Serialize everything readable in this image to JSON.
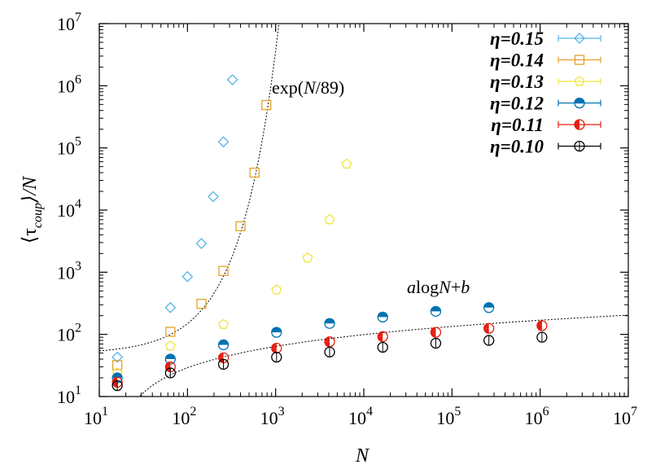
{
  "chart_data": {
    "type": "scatter",
    "xlabel": "N",
    "ylabel_main": "⟨τ",
    "ylabel_sub": "coup",
    "ylabel_tail": "⟩/N",
    "xscale": "log",
    "yscale": "log",
    "xlim": [
      10,
      10000000
    ],
    "ylim": [
      10,
      10000000
    ],
    "x_ticks": [
      {
        "value": 10,
        "base": "10",
        "exp": "1"
      },
      {
        "value": 100,
        "base": "10",
        "exp": "2"
      },
      {
        "value": 1000,
        "base": "10",
        "exp": "3"
      },
      {
        "value": 10000,
        "base": "10",
        "exp": "4"
      },
      {
        "value": 100000,
        "base": "10",
        "exp": "5"
      },
      {
        "value": 1000000,
        "base": "10",
        "exp": "6"
      },
      {
        "value": 10000000,
        "base": "10",
        "exp": "7"
      }
    ],
    "y_ticks": [
      {
        "value": 10,
        "base": "10",
        "exp": "1"
      },
      {
        "value": 100,
        "base": "10",
        "exp": "2"
      },
      {
        "value": 1000,
        "base": "10",
        "exp": "3"
      },
      {
        "value": 10000,
        "base": "10",
        "exp": "4"
      },
      {
        "value": 100000,
        "base": "10",
        "exp": "5"
      },
      {
        "value": 1000000,
        "base": "10",
        "exp": "6"
      },
      {
        "value": 10000000,
        "base": "10",
        "exp": "7"
      }
    ],
    "legend_position": "top-right",
    "grid": false,
    "series": [
      {
        "name": "η=0.15",
        "color": "#56b4e9",
        "marker": "diamond",
        "x": [
          16,
          64,
          100,
          144,
          196,
          256,
          324
        ],
        "y": [
          43,
          270,
          850,
          2900,
          16500,
          125000,
          1250000
        ]
      },
      {
        "name": "η=0.14",
        "color": "#e6a126",
        "marker": "square",
        "x": [
          16,
          64,
          144,
          256,
          400,
          576,
          784
        ],
        "y": [
          32,
          110,
          310,
          1050,
          5500,
          40000,
          490000
        ]
      },
      {
        "name": "η=0.13",
        "color": "#f0e442",
        "marker": "pentagon",
        "x": [
          16,
          64,
          256,
          1024,
          2304,
          4096,
          6400
        ],
        "y": [
          24,
          65,
          145,
          520,
          1700,
          7000,
          55000
        ]
      },
      {
        "name": "η=0.12",
        "color": "#0072b2",
        "marker": "circle-half",
        "x": [
          16,
          64,
          256,
          1024,
          4096,
          16384,
          65536,
          262144
        ],
        "y": [
          20,
          40,
          68,
          108,
          150,
          190,
          235,
          270
        ]
      },
      {
        "name": "η=0.11",
        "color": "#e51e10",
        "marker": "circle-quarter",
        "x": [
          16,
          64,
          256,
          1024,
          4096,
          16384,
          65536,
          262144,
          1048576
        ],
        "y": [
          17,
          30,
          42,
          60,
          76,
          92,
          108,
          125,
          138
        ]
      },
      {
        "name": "η=0.10",
        "color": "#000000",
        "marker": "circle-plus",
        "x": [
          16,
          64,
          256,
          1024,
          4096,
          16384,
          65536,
          262144,
          1048576
        ],
        "y": [
          15,
          24,
          33,
          43,
          52,
          62,
          72,
          80,
          90
        ]
      }
    ],
    "fits": [
      {
        "label_prefix": "exp(",
        "label_var": "N",
        "label_suffix": "/89)",
        "form": "exp",
        "a": 48.5,
        "scale": 89
      },
      {
        "label_a": "a",
        "label_mid": "log",
        "label_var": "N",
        "label_tail": "+",
        "label_b": "b",
        "form": "log",
        "a": 15.2,
        "b": -41
      }
    ]
  }
}
